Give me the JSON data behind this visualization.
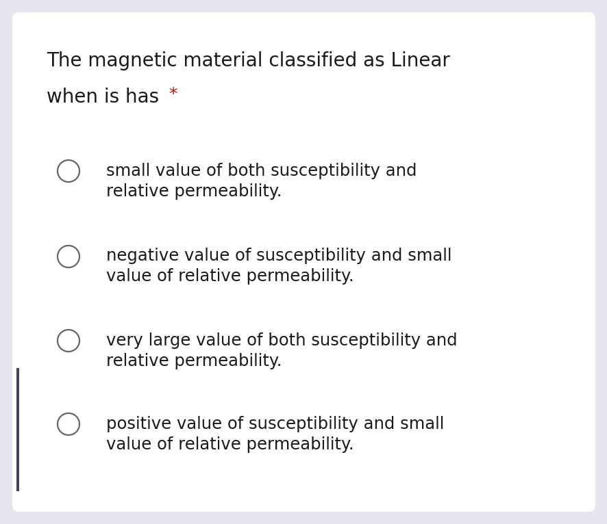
{
  "background_color": "#e6e6ee",
  "card_color": "#ffffff",
  "title_line1": "The magnetic material classified as Linear",
  "title_line2": "when is has",
  "asterisk": "*",
  "asterisk_color": "#cc1100",
  "title_fontsize": 20,
  "options": [
    [
      "small value of both susceptibility and",
      "relative permeability."
    ],
    [
      "negative value of susceptibility and small",
      "value of relative permeability."
    ],
    [
      "very large value of both susceptibility and",
      "relative permeability."
    ],
    [
      "positive value of susceptibility and small",
      "value of relative permeability."
    ]
  ],
  "option_fontsize": 17.5,
  "text_color": "#1a1a1a",
  "circle_color": "#666666",
  "circle_lw": 1.6,
  "left_bar_color": "#44445a",
  "fig_width": 8.87,
  "fig_height": 7.66,
  "dpi": 100
}
